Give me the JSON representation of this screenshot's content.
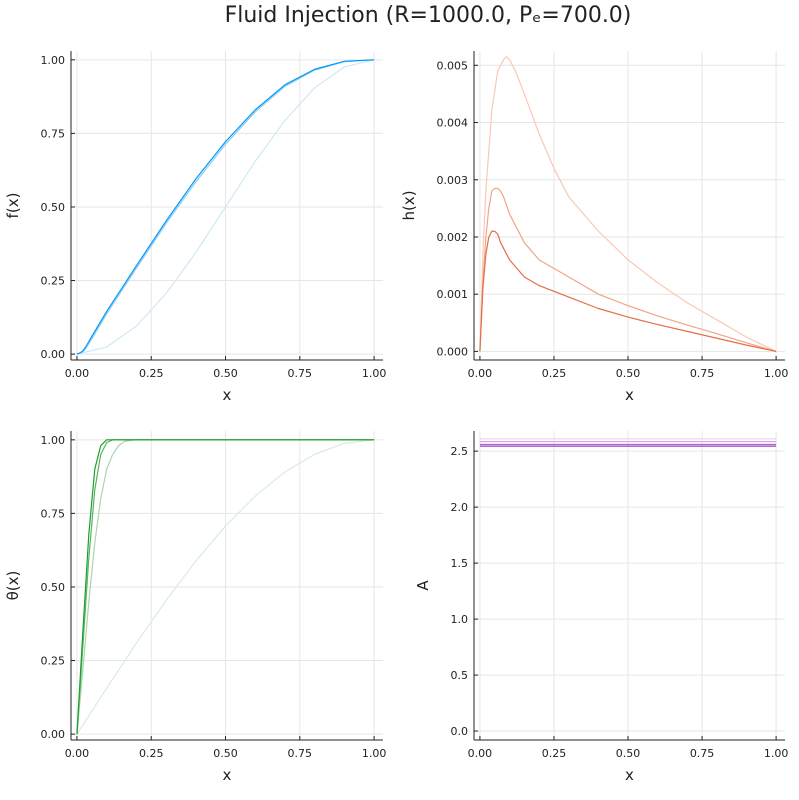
{
  "title": "Fluid Injection (R=1000.0, Pₑ=700.0)",
  "chart_data": [
    {
      "type": "line",
      "xlabel": "x",
      "ylabel": "f(x)",
      "xlim": [
        -0.02,
        1.03
      ],
      "ylim": [
        -0.02,
        1.03
      ],
      "xticks": [
        0.0,
        0.25,
        0.5,
        0.75,
        1.0
      ],
      "xtick_labels": [
        "0.00",
        "0.25",
        "0.50",
        "0.75",
        "1.00"
      ],
      "yticks": [
        0.0,
        0.25,
        0.5,
        0.75,
        1.0
      ],
      "ytick_labels": [
        "0.00",
        "0.25",
        "0.50",
        "0.75",
        "1.00"
      ],
      "grid": true,
      "legend": "none",
      "series": [
        {
          "color": "#cfe9f6",
          "x": [
            0,
            0.1,
            0.2,
            0.3,
            0.4,
            0.5,
            0.6,
            0.7,
            0.8,
            0.9,
            1.0
          ],
          "y": [
            0,
            0.024,
            0.095,
            0.206,
            0.345,
            0.5,
            0.655,
            0.794,
            0.905,
            0.976,
            1.0
          ]
        },
        {
          "color": "#8fcbee",
          "x": [
            0,
            0.01,
            0.02,
            0.03,
            0.05,
            0.1,
            0.2,
            0.3,
            0.4,
            0.5,
            0.6,
            0.7,
            0.8,
            0.9,
            1.0
          ],
          "y": [
            0,
            0.003,
            0.008,
            0.02,
            0.052,
            0.137,
            0.292,
            0.444,
            0.585,
            0.713,
            0.823,
            0.91,
            0.965,
            0.994,
            1.0
          ]
        },
        {
          "color": "#009af9",
          "x": [
            0,
            0.01,
            0.02,
            0.03,
            0.05,
            0.1,
            0.2,
            0.3,
            0.4,
            0.5,
            0.6,
            0.7,
            0.8,
            0.9,
            1.0
          ],
          "y": [
            0,
            0.004,
            0.011,
            0.025,
            0.06,
            0.145,
            0.3,
            0.452,
            0.595,
            0.722,
            0.83,
            0.915,
            0.968,
            0.995,
            1.0
          ]
        }
      ]
    },
    {
      "type": "line",
      "xlabel": "x",
      "ylabel": "h(x)",
      "xlim": [
        -0.02,
        1.03
      ],
      "ylim": [
        -0.00015,
        0.00525
      ],
      "xticks": [
        0.0,
        0.25,
        0.5,
        0.75,
        1.0
      ],
      "xtick_labels": [
        "0.00",
        "0.25",
        "0.50",
        "0.75",
        "1.00"
      ],
      "yticks": [
        0.0,
        0.001,
        0.002,
        0.003,
        0.004,
        0.005
      ],
      "ytick_labels": [
        "0.000",
        "0.001",
        "0.002",
        "0.003",
        "0.004",
        "0.005"
      ],
      "grid": true,
      "legend": "none",
      "series": [
        {
          "color": "#f9c8b4",
          "x": [
            0,
            0.01,
            0.02,
            0.04,
            0.06,
            0.08,
            0.09,
            0.1,
            0.12,
            0.15,
            0.2,
            0.25,
            0.3,
            0.4,
            0.5,
            0.6,
            0.7,
            0.8,
            0.9,
            1.0
          ],
          "y": [
            0,
            0.0017,
            0.0028,
            0.0042,
            0.0049,
            0.0051,
            0.00515,
            0.0051,
            0.0049,
            0.0045,
            0.0038,
            0.0032,
            0.0027,
            0.0021,
            0.0016,
            0.0012,
            0.00085,
            0.00055,
            0.00025,
            0
          ]
        },
        {
          "color": "#f0a589",
          "x": [
            0,
            0.01,
            0.02,
            0.03,
            0.04,
            0.05,
            0.06,
            0.07,
            0.08,
            0.1,
            0.15,
            0.2,
            0.3,
            0.4,
            0.5,
            0.6,
            0.7,
            0.8,
            0.9,
            1.0
          ],
          "y": [
            0,
            0.0012,
            0.002,
            0.0025,
            0.0028,
            0.00285,
            0.00285,
            0.0028,
            0.0027,
            0.0024,
            0.0019,
            0.0016,
            0.0013,
            0.001,
            0.0008,
            0.00062,
            0.00046,
            0.00031,
            0.00015,
            0
          ]
        },
        {
          "color": "#e26f46",
          "x": [
            0,
            0.01,
            0.02,
            0.03,
            0.04,
            0.05,
            0.06,
            0.07,
            0.08,
            0.1,
            0.15,
            0.2,
            0.3,
            0.4,
            0.5,
            0.6,
            0.7,
            0.8,
            0.9,
            1.0
          ],
          "y": [
            0,
            0.0011,
            0.0017,
            0.002,
            0.0021,
            0.0021,
            0.00205,
            0.0019,
            0.0018,
            0.0016,
            0.0013,
            0.00115,
            0.00095,
            0.00075,
            0.0006,
            0.00047,
            0.00035,
            0.00023,
            0.00011,
            0
          ]
        }
      ]
    },
    {
      "type": "line",
      "xlabel": "x",
      "ylabel": "θ(x)",
      "xlim": [
        -0.02,
        1.03
      ],
      "ylim": [
        -0.02,
        1.03
      ],
      "xticks": [
        0.0,
        0.25,
        0.5,
        0.75,
        1.0
      ],
      "xtick_labels": [
        "0.00",
        "0.25",
        "0.50",
        "0.75",
        "1.00"
      ],
      "yticks": [
        0.0,
        0.25,
        0.5,
        0.75,
        1.0
      ],
      "ytick_labels": [
        "0.00",
        "0.25",
        "0.50",
        "0.75",
        "1.00"
      ],
      "grid": true,
      "legend": "none",
      "series": [
        {
          "color": "#d9ecdc",
          "x": [
            0,
            0.1,
            0.2,
            0.3,
            0.4,
            0.5,
            0.6,
            0.7,
            0.8,
            0.9,
            1.0
          ],
          "y": [
            0,
            0.156,
            0.309,
            0.454,
            0.588,
            0.707,
            0.809,
            0.891,
            0.951,
            0.988,
            1.0
          ]
        },
        {
          "color": "#a9d6ad",
          "x": [
            0,
            0.02,
            0.04,
            0.06,
            0.08,
            0.1,
            0.12,
            0.14,
            0.16,
            0.2,
            0.3,
            1.0
          ],
          "y": [
            0,
            0.22,
            0.45,
            0.65,
            0.8,
            0.9,
            0.95,
            0.98,
            0.995,
            1.0,
            1.0,
            1.0
          ]
        },
        {
          "color": "#57b55f",
          "x": [
            0,
            0.02,
            0.04,
            0.06,
            0.08,
            0.1,
            0.12,
            0.2,
            1.0
          ],
          "y": [
            0,
            0.3,
            0.6,
            0.83,
            0.95,
            0.99,
            1.0,
            1.0,
            1.0
          ]
        },
        {
          "color": "#1c9e2f",
          "x": [
            0,
            0.02,
            0.04,
            0.06,
            0.08,
            0.1,
            0.2,
            1.0
          ],
          "y": [
            0,
            0.35,
            0.68,
            0.9,
            0.98,
            1.0,
            1.0,
            1.0
          ]
        }
      ]
    },
    {
      "type": "line",
      "xlabel": "x",
      "ylabel": "A",
      "xlim": [
        -0.02,
        1.03
      ],
      "ylim": [
        -0.08,
        2.68
      ],
      "xticks": [
        0.0,
        0.25,
        0.5,
        0.75,
        1.0
      ],
      "xtick_labels": [
        "0.00",
        "0.25",
        "0.50",
        "0.75",
        "1.00"
      ],
      "yticks": [
        0.0,
        0.5,
        1.0,
        1.5,
        2.0,
        2.5
      ],
      "ytick_labels": [
        "0.0",
        "0.5",
        "1.0",
        "1.5",
        "2.0",
        "2.5"
      ],
      "grid": true,
      "legend": "none",
      "series": [
        {
          "color": "#e8d6f0",
          "x": [
            0,
            1.0
          ],
          "y": [
            2.61,
            2.61
          ]
        },
        {
          "color": "#d6a8e6",
          "x": [
            0,
            1.0
          ],
          "y": [
            2.585,
            2.585
          ]
        },
        {
          "color": "#b35cd6",
          "x": [
            0,
            1.0
          ],
          "y": [
            2.56,
            2.56
          ]
        },
        {
          "color": "#8e44ad",
          "x": [
            0,
            1.0
          ],
          "y": [
            2.545,
            2.545
          ]
        }
      ]
    }
  ]
}
